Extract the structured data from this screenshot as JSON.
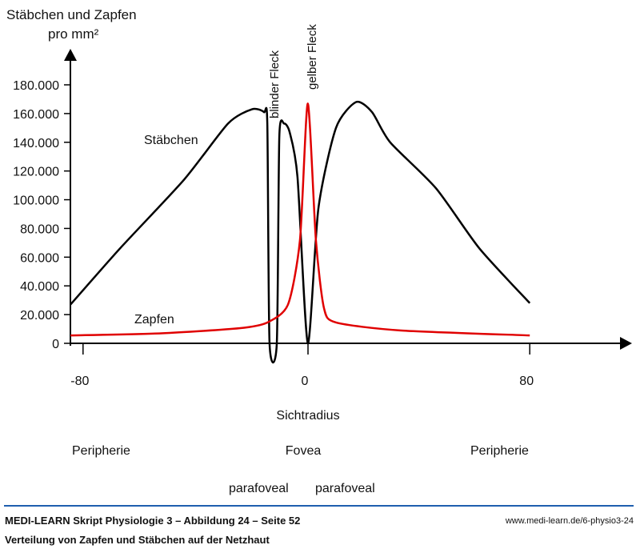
{
  "chart_data": {
    "type": "line",
    "ylabel_line1": "Stäbchen und Zapfen",
    "ylabel_line2": "pro mm²",
    "xlabel": "Sichtradius",
    "ylim": [
      0,
      180000
    ],
    "xlim": [
      -85,
      110
    ],
    "yticks": [
      0,
      20000,
      40000,
      60000,
      80000,
      100000,
      120000,
      140000,
      160000,
      180000
    ],
    "ytick_labels": [
      "0",
      "20.000",
      "40.000",
      "60.000",
      "80.000",
      "100.000",
      "120.000",
      "140.000",
      "160.000",
      "180.000"
    ],
    "xticks": [
      -80,
      0,
      80
    ],
    "xtick_labels": [
      "-80",
      "0",
      "80"
    ],
    "series": [
      {
        "name": "Stäbchen",
        "color": "#000000",
        "x": [
          -84.5,
          -66.8,
          -43.8,
          -28.1,
          -19.5,
          -15.2,
          -14,
          -13.2,
          -10.6,
          -9.7,
          -8,
          -6,
          -3.2,
          0.5,
          4.3,
          10.6,
          17.8,
          23.5,
          30,
          46.4,
          62,
          80
        ],
        "y": [
          27000,
          66000,
          114000,
          153000,
          163000,
          161000,
          153000,
          0,
          0,
          144000,
          153000,
          147000,
          116000,
          0,
          94000,
          150000,
          168000,
          161000,
          140000,
          108000,
          66000,
          28000
        ]
      },
      {
        "name": "Zapfen",
        "color": "#e00000",
        "x": [
          -84.5,
          -52,
          -24,
          -14,
          -6.6,
          -2.3,
          0.5,
          3.4,
          6.3,
          10.6,
          33.5,
          80
        ],
        "y": [
          5500,
          7000,
          10500,
          14500,
          27000,
          72000,
          167000,
          72000,
          24500,
          14500,
          9000,
          5500
        ]
      }
    ],
    "annotations": {
      "blind_spot": "blinder Fleck",
      "yellow_spot": "gelber Fleck",
      "periphery_left": "Peripherie",
      "fovea": "Fovea",
      "periphery_right": "Peripherie",
      "parafoveal_left": "parafoveal",
      "parafoveal_right": "parafoveal"
    }
  },
  "footer": {
    "title": "MEDI-LEARN Skript Physiologie 3 – Abbildung 24 – Seite 52",
    "url": "www.medi-learn.de/6-physio3-24",
    "caption": "Verteilung von Zapfen und Stäbchen auf der Netzhaut"
  }
}
